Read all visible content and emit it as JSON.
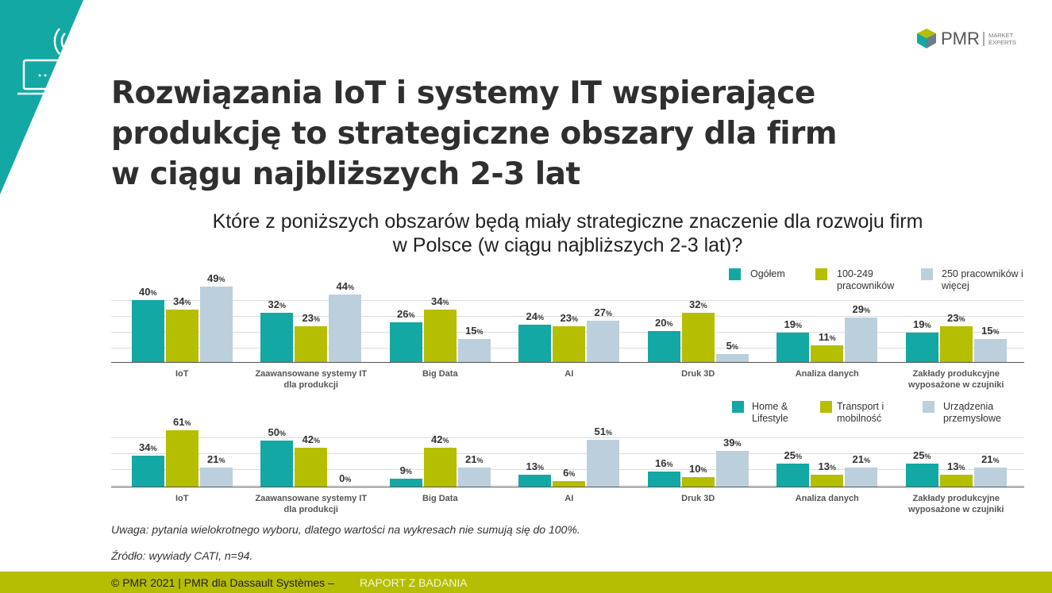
{
  "logo": {
    "name": "PMR",
    "tagline": "MARKET EXPERTS"
  },
  "title": [
    "Rozwiązania IoT i systemy IT wspierające",
    "produkcję to strategiczne obszary dla firm",
    "w ciągu najbliższych 2-3 lat"
  ],
  "question": [
    "Które z poniższych obszarów będą miały strategiczne znaczenie dla rozwoju firm",
    "w Polsce (w ciągu najbliższych 2-3 lat)?"
  ],
  "chart_data": [
    {
      "type": "bar",
      "categories": [
        "IoT",
        "Zaawansowane systemy IT dla produkcji",
        "Big Data",
        "AI",
        "Druk 3D",
        "Analiza danych",
        "Zakłady produkcyjne wyposażone w czujniki"
      ],
      "ylim": [
        0,
        50
      ],
      "grid": true,
      "legend": "top-right",
      "series": [
        {
          "name": "Ogółem",
          "color": "#13a8a4",
          "values": [
            40,
            32,
            26,
            24,
            20,
            19,
            19
          ],
          "value_labels": [
            "40%",
            "32%",
            "26%",
            "24%",
            "20%",
            "19%",
            "19%"
          ]
        },
        {
          "name": "100-249 pracowników",
          "color": "#b5be00",
          "values": [
            34,
            23,
            34,
            23,
            32,
            11,
            23
          ],
          "value_labels": [
            "34%",
            "23%",
            "34%",
            "23%",
            "32%",
            "11%",
            "23%"
          ]
        },
        {
          "name": "250 pracowników i więcej",
          "color": "#bccfdc",
          "values": [
            49,
            44,
            15,
            27,
            5,
            29,
            15
          ],
          "value_labels": [
            "49%",
            "44%",
            "15%",
            "27%",
            "5%",
            "29%",
            "15%"
          ]
        }
      ]
    },
    {
      "type": "bar",
      "categories": [
        "IoT",
        "Zaawansowane systemy IT dla produkcji",
        "Big Data",
        "AI",
        "Druk 3D",
        "Analiza danych",
        "Zakłady produkcyjne wyposażone w czujniki"
      ],
      "ylim": [
        0,
        70
      ],
      "grid": true,
      "legend": "top-right",
      "series": [
        {
          "name": "Home & Lifestyle",
          "color": "#13a8a4",
          "values": [
            34,
            50,
            9,
            13,
            16,
            25,
            25
          ],
          "value_labels": [
            "34%",
            "50%",
            "9%",
            "13%",
            "16%",
            "25%",
            "25%"
          ]
        },
        {
          "name": "Transport i mobilność",
          "color": "#b5be00",
          "values": [
            61,
            42,
            42,
            6,
            10,
            13,
            13
          ],
          "value_labels": [
            "61%",
            "42%",
            "42%",
            "6%",
            "10%",
            "13%",
            "13%"
          ]
        },
        {
          "name": "Urządzenia przemysłowe",
          "color": "#bccfdc",
          "values": [
            21,
            0,
            21,
            51,
            39,
            21,
            21
          ],
          "value_labels": [
            "21%",
            "0%",
            "21%",
            "51%",
            "39%",
            "21%",
            "21%"
          ]
        }
      ]
    }
  ],
  "note": "Uwaga: pytania wielokrotnego wyboru, dlatego wartości na wykresach nie sumują się do 100%.",
  "source": "Źródło: wywiady CATI, n=94.",
  "footer": {
    "left": "© PMR 2021 | PMR dla Dassault Systèmes –",
    "right": "RAPORT Z BADANIA"
  }
}
